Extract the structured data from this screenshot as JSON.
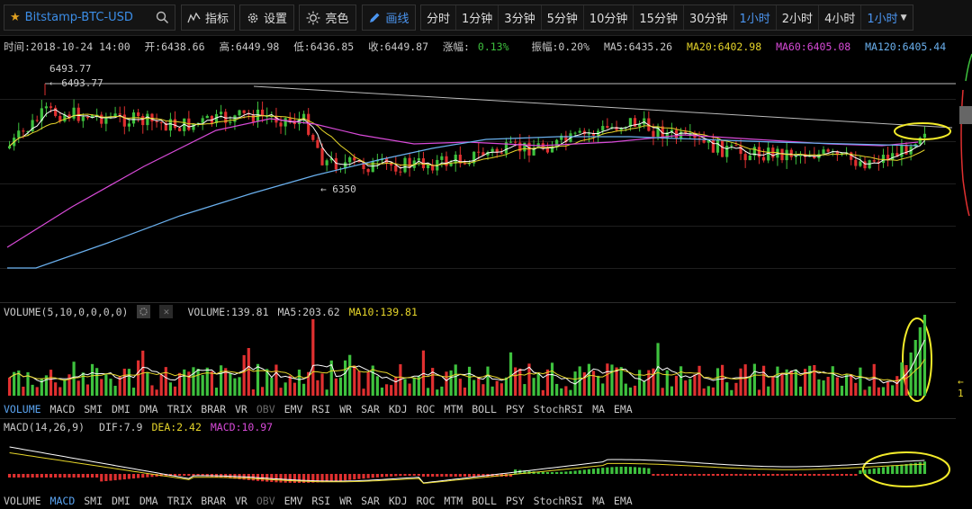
{
  "toolbar": {
    "symbol": "Bitstamp-BTC-USD",
    "indicator_label": "指标",
    "settings_label": "设置",
    "theme_label": "亮色",
    "draw_label": "画线",
    "periods": [
      "分时",
      "1分钟",
      "3分钟",
      "5分钟",
      "10分钟",
      "15分钟",
      "30分钟",
      "1小时",
      "2小时",
      "4小时",
      "1小时"
    ],
    "active_period_index": 7
  },
  "info": {
    "time": "时间:2018-10-24 14:00",
    "open": "开:6438.66",
    "high": "高:6449.98",
    "low": "低:6436.85",
    "close": "收:6449.87",
    "change": "涨幅:",
    "change_value": "0.13%",
    "amplitude": "振幅:0.20%",
    "ma5": "MA5:6435.26",
    "ma20": "MA20:6402.98",
    "ma60": "MA60:6405.08",
    "ma120": "MA120:6405.44"
  },
  "price_labels": {
    "high_top": "6493.77",
    "high_arrow": "← 6493.77",
    "low_arrow": "← 6350"
  },
  "volume_panel": {
    "title": "VOLUME(5,10,0,0,0,0)",
    "volume": "VOLUME:139.81",
    "ma5": "MA5:203.62",
    "ma10": "MA10:139.81",
    "right_mark": "← 1"
  },
  "macd_panel": {
    "title": "MACD(14,26,9)",
    "dif": "DIF:7.9",
    "dea": "DEA:2.42",
    "macd": "MACD:10.97"
  },
  "indicator_tabs": [
    "VOLUME",
    "MACD",
    "SMI",
    "DMI",
    "DMA",
    "TRIX",
    "BRAR",
    "VR",
    "OBV",
    "EMV",
    "RSI",
    "WR",
    "SAR",
    "KDJ",
    "ROC",
    "MTM",
    "BOLL",
    "PSY",
    "StochRSI",
    "MA",
    "EMA"
  ],
  "tabs_row1_active": "VOLUME",
  "tabs_row2_active": "MACD",
  "colors": {
    "up": "#3ec13e",
    "down": "#e03030",
    "ma5": "#ffffff",
    "ma20": "#e6d52a",
    "ma60": "#d84ad8",
    "ma120": "#6ab0ee",
    "highlight": "#f2ea2a",
    "accent": "#4b95f0"
  }
}
